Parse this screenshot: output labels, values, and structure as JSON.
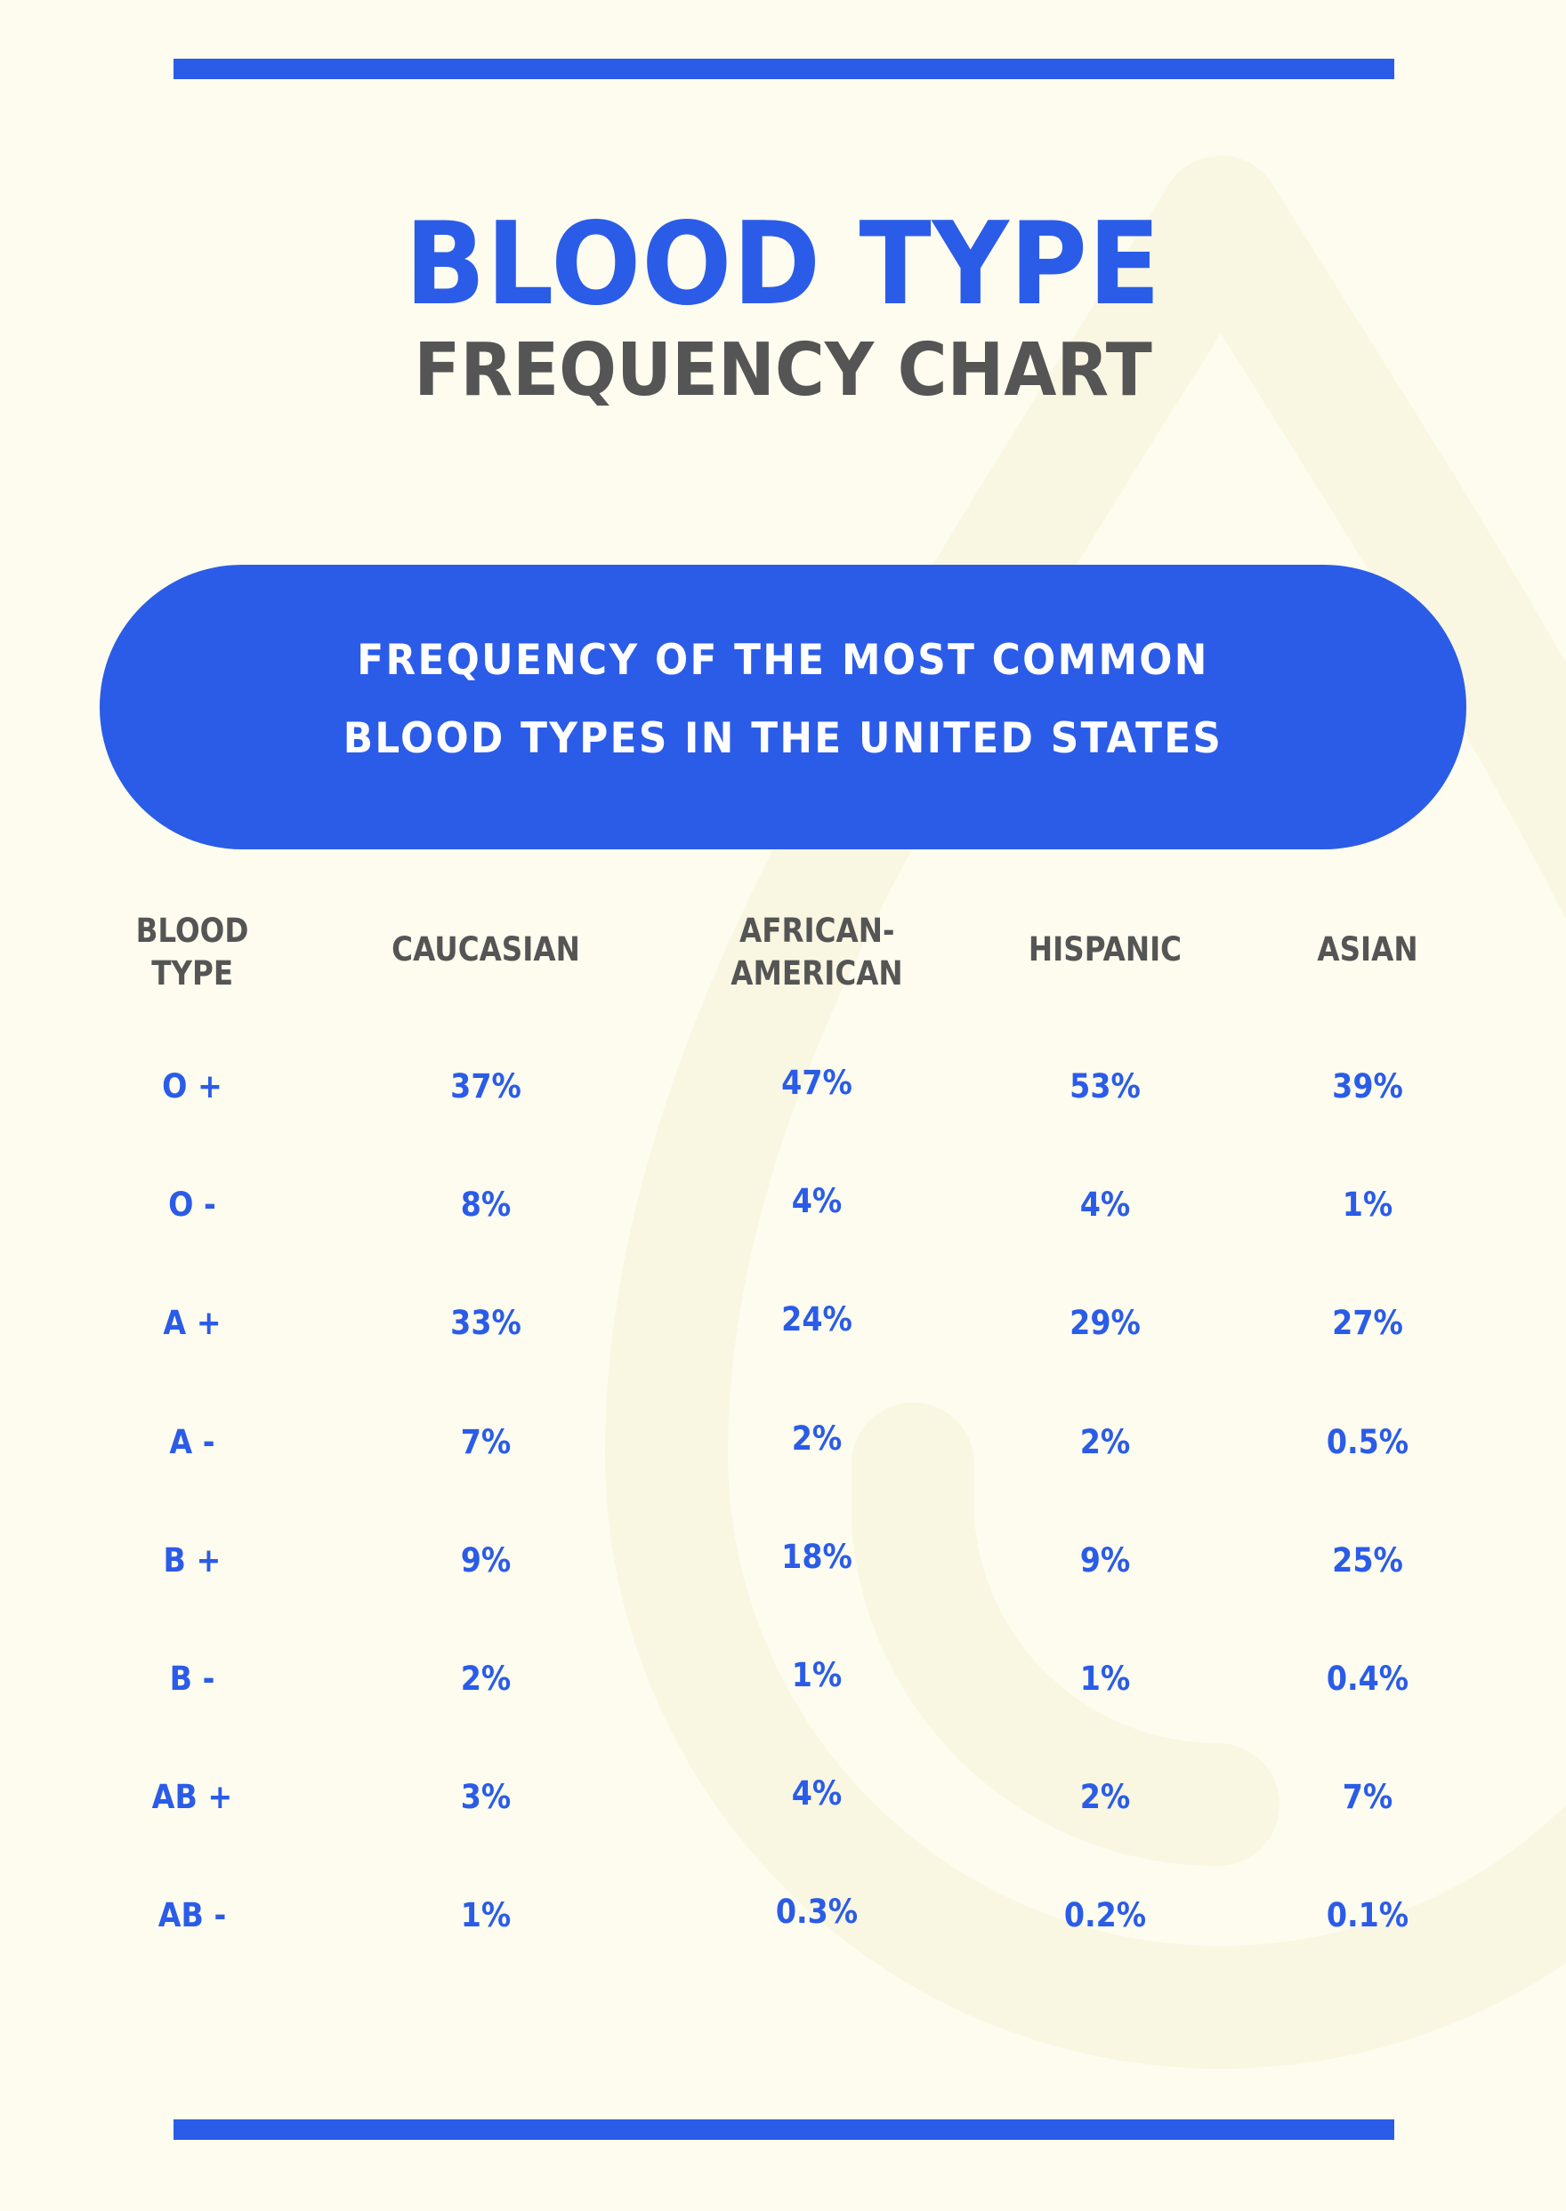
{
  "page": {
    "background_color": "#fdfcee",
    "accent_color": "#2b5ce8",
    "heading_gray": "#555555",
    "watermark_color": "#f9f6e2"
  },
  "header": {
    "title": "BLOOD TYPE",
    "subtitle": "FREQUENCY CHART"
  },
  "banner": {
    "line1": "FREQUENCY OF THE MOST COMMON",
    "line2": "BLOOD TYPES IN THE UNITED STATES"
  },
  "table": {
    "headers": [
      {
        "line1": "BLOOD",
        "line2": "TYPE"
      },
      {
        "line1": "CAUCASIAN"
      },
      {
        "line1": "AFRICAN-",
        "line2": "AMERICAN"
      },
      {
        "line1": "HISPANIC"
      },
      {
        "line1": "ASIAN"
      }
    ],
    "rows": [
      {
        "type": "O +",
        "caucasian": "37%",
        "african_american": "47%",
        "hispanic": "53%",
        "asian": "39%"
      },
      {
        "type": "O -",
        "caucasian": "8%",
        "african_american": "4%",
        "hispanic": "4%",
        "asian": "1%"
      },
      {
        "type": "A +",
        "caucasian": "33%",
        "african_american": "24%",
        "hispanic": "29%",
        "asian": "27%"
      },
      {
        "type": "A -",
        "caucasian": "7%",
        "african_american": "2%",
        "hispanic": "2%",
        "asian": "0.5%"
      },
      {
        "type": "B +",
        "caucasian": "9%",
        "african_american": "18%",
        "hispanic": "9%",
        "asian": "25%"
      },
      {
        "type": "B -",
        "caucasian": "2%",
        "african_american": "1%",
        "hispanic": "1%",
        "asian": "0.4%"
      },
      {
        "type": "AB +",
        "caucasian": "3%",
        "african_american": "4%",
        "hispanic": "2%",
        "asian": "7%"
      },
      {
        "type": "AB -",
        "caucasian": "1%",
        "african_american": "0.3%",
        "hispanic": "0.2%",
        "asian": "0.1%"
      }
    ]
  },
  "decor": {
    "watermark_icon": "blood-drop-icon"
  },
  "chart_data": {
    "type": "table",
    "title": "BLOOD TYPE FREQUENCY CHART",
    "subtitle": "FREQUENCY OF THE MOST COMMON BLOOD TYPES IN THE UNITED STATES",
    "columns": [
      "BLOOD TYPE",
      "CAUCASIAN",
      "AFRICAN-AMERICAN",
      "HISPANIC",
      "ASIAN"
    ],
    "categories": [
      "O +",
      "O -",
      "A +",
      "A -",
      "B +",
      "B -",
      "AB +",
      "AB -"
    ],
    "series": [
      {
        "name": "CAUCASIAN",
        "values": [
          37,
          8,
          33,
          7,
          9,
          2,
          3,
          1
        ]
      },
      {
        "name": "AFRICAN-AMERICAN",
        "values": [
          47,
          4,
          24,
          2,
          18,
          1,
          4,
          0.3
        ]
      },
      {
        "name": "HISPANIC",
        "values": [
          53,
          4,
          29,
          2,
          9,
          1,
          2,
          0.2
        ]
      },
      {
        "name": "ASIAN",
        "values": [
          39,
          1,
          27,
          0.5,
          25,
          0.4,
          7,
          0.1
        ]
      }
    ],
    "unit": "%"
  }
}
